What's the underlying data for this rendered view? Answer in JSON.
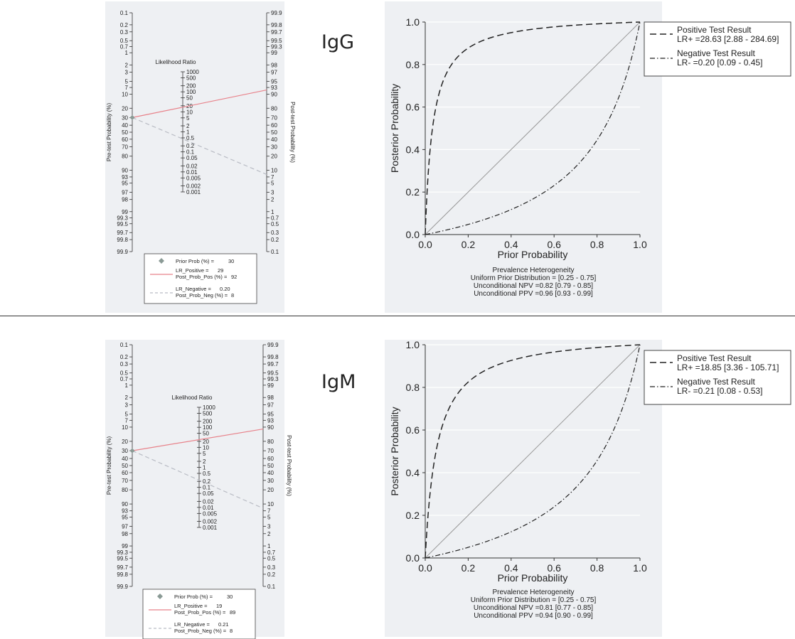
{
  "chart_data": [
    {
      "type": "fagan_nomogram",
      "ylabel_left": "Pre-test Probability (%)",
      "ylabel_right": "Post-test Probability (%)",
      "center_label": "Likelihood Ratio",
      "left_ticks": [
        "0.1",
        "0.2",
        "0.3",
        "0.5",
        "0.7",
        "1",
        "2",
        "3",
        "5",
        "7",
        "10",
        "20",
        "30",
        "40",
        "50",
        "60",
        "70",
        "80",
        "90",
        "93",
        "95",
        "97",
        "98",
        "99",
        "99.3",
        "99.5",
        "99.7",
        "99.8",
        "99.9"
      ],
      "right_ticks": [
        "99.9",
        "99.8",
        "99.7",
        "99.5",
        "99.3",
        "99",
        "98",
        "97",
        "95",
        "93",
        "90",
        "80",
        "70",
        "60",
        "50",
        "40",
        "30",
        "20",
        "10",
        "7",
        "5",
        "3",
        "2",
        "1",
        "0.7",
        "0.5",
        "0.3",
        "0.2",
        "0.1"
      ],
      "lr_ticks": [
        "1000",
        "500",
        "200",
        "100",
        "50",
        "20",
        "10",
        "5",
        "2",
        "1",
        "0.5",
        "0.2",
        "0.1",
        "0.05",
        "0.02",
        "0.01",
        "0.005",
        "0.002",
        "0.001"
      ],
      "prior_prob": 30,
      "lr_positive": 29,
      "post_prob_pos": 92,
      "lr_negative": 0.2,
      "post_prob_neg": 8,
      "legend": {
        "prior": "Prior Prob (%) =",
        "prior_val": "30",
        "lrp": "LR_Positive =",
        "lrp_val": "29",
        "ppp": "Post_Prob_Pos (%) =",
        "ppp_val": "92",
        "lrn": "LR_Negative =",
        "lrn_val": "0.20",
        "ppn": "Post_Prob_Neg (%) =",
        "ppn_val": "8"
      }
    },
    {
      "type": "line",
      "title": "IgG",
      "xlabel": "Prior Probability",
      "ylabel": "Posterior Probability",
      "xlim": [
        0,
        1
      ],
      "ylim": [
        0,
        1
      ],
      "ticks": [
        "0.0",
        "0.2",
        "0.4",
        "0.6",
        "0.8",
        "1.0"
      ],
      "lr_pos": 28.63,
      "lr_neg": 0.2,
      "series": [
        {
          "name": "Positive Test Result",
          "sub": "LR+ =28.63 [2.88 - 284.69]"
        },
        {
          "name": "Negative Test Result",
          "sub": "LR- =0.20 [0.09 - 0.45]"
        }
      ],
      "notes": [
        "Prevalence Heterogeneity",
        "Uniform Prior Distribution = [0.25 - 0.75]",
        "Unconditional NPV =0.82 [0.79 - 0.85]",
        "Unconditional PPV =0.96 [0.93 - 0.99]"
      ],
      "legend_position": "right"
    },
    {
      "type": "fagan_nomogram",
      "ylabel_left": "Pre-test Probability (%)",
      "ylabel_right": "Post-test Probability (%)",
      "center_label": "Likelihood Ratio",
      "left_ticks": [
        "0.1",
        "0.2",
        "0.3",
        "0.5",
        "0.7",
        "1",
        "2",
        "3",
        "5",
        "7",
        "10",
        "20",
        "30",
        "40",
        "50",
        "60",
        "70",
        "80",
        "90",
        "93",
        "95",
        "97",
        "98",
        "99",
        "99.3",
        "99.5",
        "99.7",
        "99.8",
        "99.9"
      ],
      "right_ticks": [
        "99.9",
        "99.8",
        "99.7",
        "99.5",
        "99.3",
        "99",
        "98",
        "97",
        "95",
        "93",
        "90",
        "80",
        "70",
        "60",
        "50",
        "40",
        "30",
        "20",
        "10",
        "7",
        "5",
        "3",
        "2",
        "1",
        "0.7",
        "0.5",
        "0.3",
        "0.2",
        "0.1"
      ],
      "lr_ticks": [
        "1000",
        "500",
        "200",
        "100",
        "50",
        "20",
        "10",
        "5",
        "2",
        "1",
        "0.5",
        "0.2",
        "0.1",
        "0.05",
        "0.02",
        "0.01",
        "0.005",
        "0.002",
        "0.001"
      ],
      "prior_prob": 30,
      "lr_positive": 19,
      "post_prob_pos": 89,
      "lr_negative": 0.21,
      "post_prob_neg": 8,
      "legend": {
        "prior": "Prior Prob (%) =",
        "prior_val": "30",
        "lrp": "LR_Positive =",
        "lrp_val": "19",
        "ppp": "Post_Prob_Pos (%) =",
        "ppp_val": "89",
        "lrn": "LR_Negative =",
        "lrn_val": "0.21",
        "ppn": "Post_Prob_Neg (%) =",
        "ppn_val": "8"
      }
    },
    {
      "type": "line",
      "title": "IgM",
      "xlabel": "Prior Probability",
      "ylabel": "Posterior Probability",
      "xlim": [
        0,
        1
      ],
      "ylim": [
        0,
        1
      ],
      "ticks": [
        "0.0",
        "0.2",
        "0.4",
        "0.6",
        "0.8",
        "1.0"
      ],
      "lr_pos": 18.85,
      "lr_neg": 0.21,
      "series": [
        {
          "name": "Positive Test Result",
          "sub": "LR+ =18.85 [3.36 - 105.71]"
        },
        {
          "name": "Negative Test Result",
          "sub": "LR- =0.21 [0.08 - 0.53]"
        }
      ],
      "notes": [
        "Prevalence Heterogeneity",
        "Uniform Prior Distribution = [0.25 - 0.75]",
        "Unconditional NPV =0.81 [0.77 - 0.85]",
        "Unconditional PPV =0.94 [0.90 - 0.99]"
      ],
      "legend_position": "right"
    }
  ],
  "colors": {
    "positive_line": "#e8828a",
    "negative_line": "#b9bcc4",
    "prior_marker": "#8a9a95",
    "panel_bg": "#eef0f3"
  }
}
